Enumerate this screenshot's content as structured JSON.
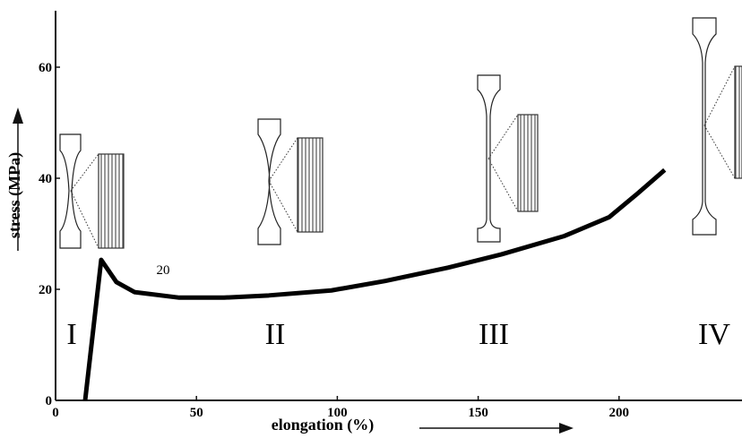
{
  "chart_data": {
    "type": "line",
    "x_label": "elongation (%)",
    "y_label": "stress (MPa)",
    "x": [
      10.5,
      16.2,
      21.6,
      28,
      43.9,
      59.8,
      75.7,
      97.9,
      117,
      139.3,
      158.3,
      180.6,
      196.5,
      206,
      216.2
    ],
    "series": [
      {
        "color": "#000000",
        "values": [
          0,
          25.3,
          21.3,
          19.5,
          18.5,
          18.5,
          18.9,
          19.8,
          21.5,
          23.9,
          26.3,
          29.6,
          33,
          37,
          41.5
        ]
      }
    ],
    "xlim": [
      0,
      243
    ],
    "ylim": [
      0,
      70
    ],
    "xticks": [
      0,
      50,
      100,
      150,
      200
    ],
    "yticks": [
      0,
      20,
      40,
      60
    ],
    "annotations": [
      "I",
      "II",
      "III",
      "IV",
      "20"
    ]
  }
}
